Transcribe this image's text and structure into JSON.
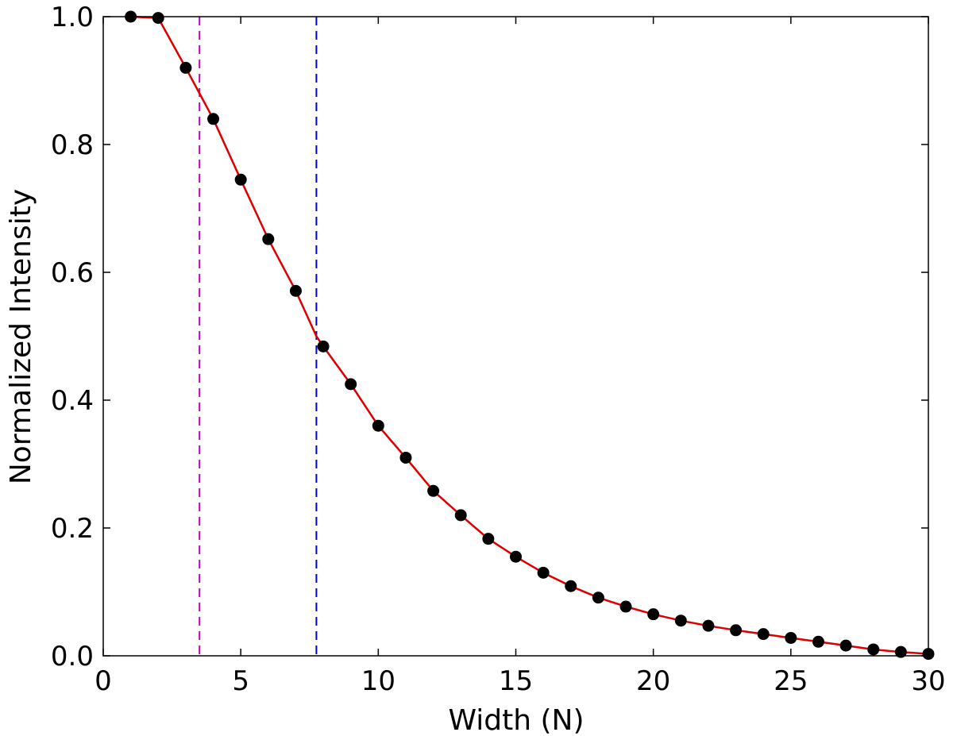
{
  "chart_data": {
    "type": "line",
    "xlabel": "Width (N)",
    "ylabel": "Normalized Intensity",
    "xlim": [
      0,
      30
    ],
    "ylim": [
      0.0,
      1.0
    ],
    "xticks": [
      "0",
      "5",
      "10",
      "15",
      "20",
      "25",
      "30"
    ],
    "yticks": [
      "0.0",
      "0.2",
      "0.4",
      "0.6",
      "0.8",
      "1.0"
    ],
    "grid": false,
    "legend": "none",
    "series": [
      {
        "kind": "scatter",
        "color": "#000000",
        "x": [
          1,
          2,
          3,
          4,
          5,
          6,
          7,
          8,
          9,
          10,
          11,
          12,
          13,
          14,
          15,
          16,
          17,
          18,
          19,
          20,
          21,
          22,
          23,
          24,
          25,
          26,
          27,
          28,
          29,
          30
        ],
        "y": [
          1.0,
          0.998,
          0.92,
          0.84,
          0.745,
          0.652,
          0.571,
          0.484,
          0.425,
          0.36,
          0.31,
          0.258,
          0.22,
          0.183,
          0.155,
          0.13,
          0.109,
          0.091,
          0.077,
          0.065,
          0.055,
          0.047,
          0.04,
          0.034,
          0.028,
          0.022,
          0.016,
          0.01,
          0.006,
          0.003
        ]
      },
      {
        "kind": "line",
        "color": "#dd0000",
        "x": [
          1,
          2,
          3,
          4,
          5,
          6,
          7,
          7.75,
          8,
          9,
          10,
          11,
          12,
          13,
          14,
          15,
          16,
          17,
          18,
          19,
          20,
          21,
          22,
          23,
          24,
          25,
          26,
          27,
          28,
          29,
          30
        ],
        "y": [
          1.0,
          0.998,
          0.92,
          0.84,
          0.745,
          0.652,
          0.571,
          0.5,
          0.484,
          0.425,
          0.36,
          0.31,
          0.258,
          0.22,
          0.183,
          0.155,
          0.13,
          0.109,
          0.091,
          0.077,
          0.065,
          0.055,
          0.047,
          0.04,
          0.034,
          0.028,
          0.022,
          0.016,
          0.01,
          0.006,
          0.003
        ]
      }
    ],
    "vlines": [
      {
        "x": 3.5,
        "color": "#bb00bb",
        "style": "dashed"
      },
      {
        "x": 7.75,
        "color": "#0000cc",
        "style": "dashed"
      }
    ]
  }
}
